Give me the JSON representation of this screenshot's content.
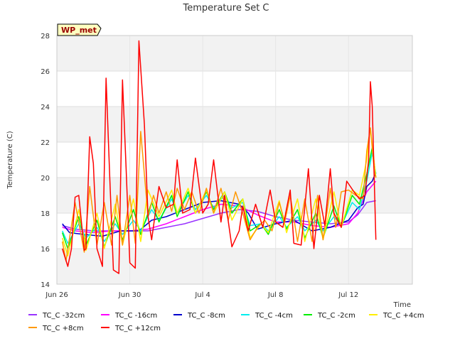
{
  "chart_data": {
    "type": "line",
    "title": "Temperature Set C",
    "ylabel": "Temperature (C)",
    "xlabel": "Time",
    "ylim": [
      14,
      28
    ],
    "xlim": [
      0,
      19.5
    ],
    "yticks": [
      14,
      16,
      18,
      20,
      22,
      24,
      26,
      28
    ],
    "xticks": [
      {
        "x": 0,
        "label": "Jun 26"
      },
      {
        "x": 4,
        "label": "Jun 30"
      },
      {
        "x": 8,
        "label": "Jul 4"
      },
      {
        "x": 12,
        "label": "Jul 8"
      },
      {
        "x": 16,
        "label": "Jul 12"
      }
    ],
    "grid": true,
    "legend_position": "bottom",
    "annotation": "WP_met",
    "series": [
      {
        "name": "TC_C -32cm",
        "color": "#9933ff",
        "x": [
          0.3,
          1,
          2,
          3,
          4,
          5,
          6,
          7,
          8,
          9,
          10,
          11,
          12,
          13,
          14,
          15,
          16,
          16.5,
          17,
          17.5
        ],
        "y": [
          17.3,
          17.1,
          17.0,
          17.0,
          17.0,
          17.0,
          17.2,
          17.4,
          17.7,
          18.0,
          18.2,
          18.1,
          17.8,
          17.6,
          17.5,
          17.4,
          17.5,
          17.9,
          18.6,
          18.7
        ]
      },
      {
        "name": "TC_C -16cm",
        "color": "#ff00ff",
        "x": [
          0.3,
          1,
          2,
          3,
          4,
          5,
          6,
          7,
          8,
          9,
          10,
          11,
          12,
          13,
          14,
          15,
          16,
          16.5,
          17,
          17.5
        ],
        "y": [
          17.2,
          17.0,
          16.9,
          17.0,
          17.0,
          17.1,
          17.4,
          17.8,
          18.2,
          18.5,
          18.4,
          17.9,
          17.5,
          17.5,
          17.3,
          17.2,
          17.4,
          18.0,
          19.2,
          19.8
        ]
      },
      {
        "name": "TC_C -8cm",
        "color": "#0000cc",
        "x": [
          0.3,
          0.7,
          1.5,
          2.5,
          3.5,
          4.5,
          5.2,
          6,
          7,
          8,
          9,
          10,
          10.5,
          11,
          12,
          13,
          14,
          15,
          16,
          16.5,
          16.8,
          17,
          17.3,
          17.5
        ],
        "y": [
          17.4,
          16.9,
          16.8,
          16.7,
          17.0,
          17.0,
          17.6,
          17.8,
          18.2,
          18.6,
          18.7,
          18.5,
          18.0,
          17.1,
          17.4,
          17.6,
          17.0,
          17.2,
          17.6,
          18.3,
          18.5,
          19.5,
          19.8,
          20.3
        ]
      },
      {
        "name": "TC_C -4cm",
        "color": "#00eeee",
        "x": [
          0.3,
          0.6,
          1.2,
          1.6,
          2.2,
          2.6,
          3.2,
          3.6,
          4.2,
          4.6,
          5.2,
          5.6,
          6.3,
          6.6,
          7.2,
          7.6,
          8.2,
          8.6,
          9.2,
          9.6,
          10.2,
          10.6,
          11.2,
          11.6,
          12.2,
          12.6,
          13.2,
          13.6,
          14.2,
          14.6,
          15.2,
          15.6,
          16.2,
          16.6,
          17,
          17.3,
          17.5
        ],
        "y": [
          17.0,
          16.3,
          17.4,
          16.6,
          17.2,
          16.4,
          17.4,
          16.8,
          17.6,
          17.0,
          18.2,
          17.6,
          18.8,
          18.0,
          19.0,
          18.2,
          19.0,
          18.3,
          19.0,
          18.3,
          18.6,
          17.3,
          17.4,
          17.0,
          17.8,
          17.2,
          17.8,
          17.0,
          17.6,
          17.0,
          17.8,
          17.3,
          18.6,
          18.2,
          19.8,
          21.4,
          20.2
        ]
      },
      {
        "name": "TC_C -2cm",
        "color": "#00ee00",
        "x": [
          0.3,
          0.6,
          1.2,
          1.6,
          2.2,
          2.6,
          3.2,
          3.6,
          4.2,
          4.6,
          5.2,
          5.6,
          6.3,
          6.6,
          7.2,
          7.6,
          8.2,
          8.6,
          9.2,
          9.6,
          10.2,
          10.6,
          11.2,
          11.6,
          12.2,
          12.6,
          13.2,
          13.6,
          14.2,
          14.6,
          15.2,
          15.6,
          16.2,
          16.6,
          17,
          17.3,
          17.5
        ],
        "y": [
          16.9,
          16.0,
          17.8,
          16.2,
          17.6,
          16.1,
          17.8,
          16.5,
          18.2,
          16.8,
          18.6,
          17.5,
          19.0,
          17.8,
          19.2,
          18.0,
          19.2,
          18.2,
          19.2,
          18.0,
          18.8,
          17.0,
          17.4,
          16.8,
          18.2,
          17.1,
          18.2,
          16.6,
          18.0,
          16.6,
          18.4,
          17.2,
          19.0,
          18.5,
          20.2,
          21.7,
          20.0
        ]
      },
      {
        "name": "TC_C +4cm",
        "color": "#ffee00",
        "x": [
          0.3,
          0.6,
          1.2,
          1.6,
          2.2,
          2.6,
          3.2,
          3.6,
          4.2,
          4.6,
          5.0,
          5.6,
          6.3,
          6.6,
          7.2,
          7.6,
          8.2,
          8.6,
          9.2,
          9.6,
          10.2,
          10.6,
          11.2,
          11.6,
          12.2,
          12.6,
          13.2,
          13.6,
          14.2,
          14.6,
          15.2,
          15.6,
          16.2,
          16.6,
          17,
          17.2,
          17.5
        ],
        "y": [
          16.6,
          15.6,
          18.2,
          15.9,
          18.0,
          16.0,
          18.5,
          16.2,
          18.8,
          16.4,
          19.3,
          17.8,
          19.3,
          18.0,
          19.4,
          18.0,
          19.3,
          18.0,
          19.2,
          17.6,
          18.8,
          16.6,
          17.4,
          16.9,
          18.7,
          16.9,
          18.8,
          16.4,
          18.8,
          16.5,
          19.2,
          17.2,
          19.3,
          19.0,
          21.0,
          22.8,
          20.0
        ]
      },
      {
        "name": "TC_C +8cm",
        "color": "#ff9900",
        "x": [
          0.3,
          0.5,
          1.0,
          1.5,
          1.8,
          2.2,
          2.6,
          3.0,
          3.3,
          3.6,
          4.0,
          4.3,
          4.6,
          5.0,
          5.3,
          5.6,
          6.0,
          6.3,
          6.6,
          7.0,
          7.4,
          7.8,
          8.2,
          8.6,
          9.0,
          9.4,
          9.8,
          10.2,
          10.6,
          11.0,
          11.4,
          11.8,
          12.2,
          12.5,
          12.8,
          13.2,
          13.6,
          14.0,
          14.3,
          14.6,
          15.0,
          15.3,
          15.6,
          16.0,
          16.4,
          16.8,
          17.0,
          17.2,
          17.4,
          17.5
        ],
        "y": [
          16.4,
          15.3,
          18.6,
          15.8,
          19.5,
          16.2,
          18.6,
          16.2,
          19.0,
          16.2,
          19.0,
          16.3,
          22.6,
          17.8,
          19.0,
          18.0,
          19.2,
          18.1,
          19.4,
          18.2,
          19.2,
          18.0,
          19.4,
          18.0,
          19.4,
          17.6,
          19.2,
          18.0,
          16.5,
          17.2,
          17.6,
          17.0,
          18.6,
          17.5,
          19.0,
          16.4,
          18.8,
          16.4,
          19.0,
          16.5,
          19.4,
          17.2,
          19.2,
          19.3,
          19.0,
          18.8,
          21.5,
          22.8,
          20.5,
          20.0
        ]
      },
      {
        "name": "TC_C +12cm",
        "color": "#ff0000",
        "x": [
          0.3,
          0.6,
          0.8,
          1.0,
          1.2,
          1.5,
          1.6,
          1.8,
          2.0,
          2.2,
          2.5,
          2.7,
          2.9,
          3.1,
          3.4,
          3.6,
          3.8,
          4.0,
          4.3,
          4.5,
          4.8,
          5.0,
          5.2,
          5.6,
          6.0,
          6.4,
          6.6,
          6.9,
          7.3,
          7.6,
          8.0,
          8.3,
          8.6,
          9.0,
          9.2,
          9.6,
          10.0,
          10.2,
          10.5,
          10.9,
          11.3,
          11.7,
          12.0,
          12.4,
          12.8,
          13.0,
          13.4,
          13.8,
          14.1,
          14.4,
          14.7,
          15.0,
          15.2,
          15.6,
          15.9,
          16.3,
          16.6,
          16.9,
          17.1,
          17.2,
          17.3,
          17.4,
          17.5
        ],
        "y": [
          16.0,
          15.0,
          16.0,
          18.9,
          19.0,
          15.9,
          16.0,
          22.3,
          20.8,
          16.0,
          15.0,
          25.6,
          20.0,
          14.8,
          14.6,
          25.5,
          20.5,
          15.2,
          14.9,
          27.7,
          23.0,
          17.8,
          16.5,
          19.5,
          18.3,
          18.5,
          21.0,
          18.0,
          18.2,
          21.1,
          18.0,
          18.5,
          21.0,
          17.5,
          19.0,
          16.1,
          17.0,
          18.4,
          17.0,
          18.5,
          17.2,
          19.3,
          17.5,
          17.2,
          19.3,
          16.3,
          16.2,
          20.5,
          16.0,
          19.0,
          17.3,
          20.5,
          18.0,
          17.2,
          19.8,
          19.2,
          18.8,
          19.0,
          21.0,
          25.4,
          24.0,
          20.2,
          16.5
        ]
      }
    ]
  }
}
